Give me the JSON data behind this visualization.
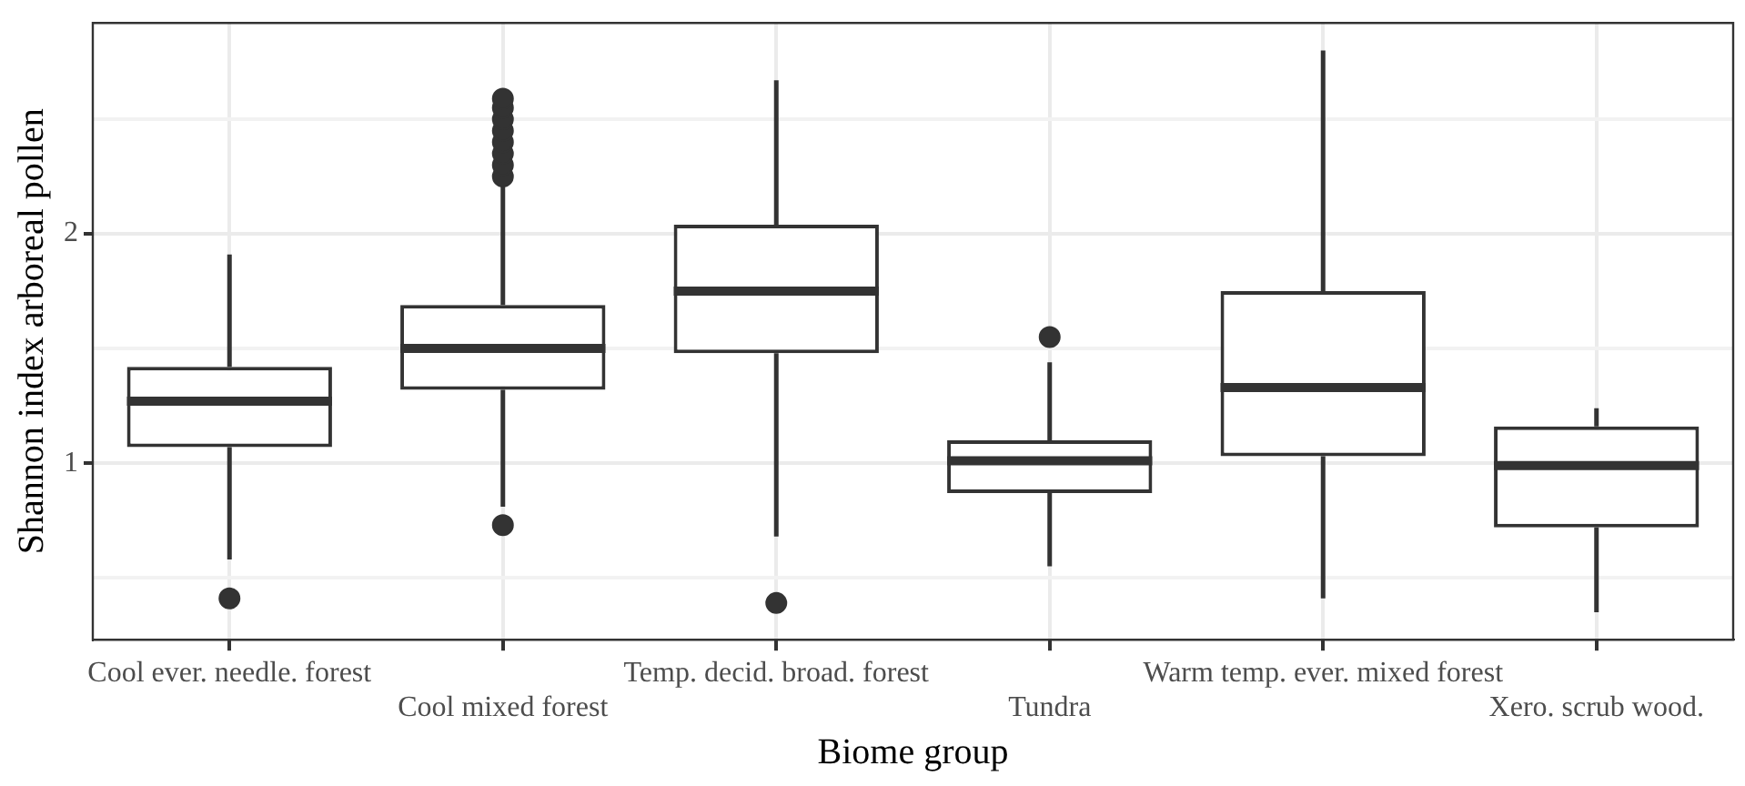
{
  "chart_data": {
    "type": "box",
    "xlabel": "Biome group",
    "ylabel": "Shannon index arboreal pollen",
    "color": "#333333",
    "grid": true,
    "categories": [
      "Cool ever. needle. forest",
      "Cool mixed forest",
      "Temp. decid. broad. forest",
      "Tundra",
      "Warm temp. ever. mixed forest",
      "Xero. scrub wood."
    ],
    "boxes": [
      {
        "low": 0.58,
        "q1": 1.07,
        "median": 1.27,
        "q3": 1.42,
        "high": 1.91,
        "outliers": [
          0.41
        ]
      },
      {
        "low": 0.81,
        "q1": 1.32,
        "median": 1.5,
        "q3": 1.69,
        "high": 2.22,
        "outliers": [
          0.73,
          2.25,
          2.3,
          2.35,
          2.4,
          2.45,
          2.5,
          2.55,
          2.59
        ]
      },
      {
        "low": 0.68,
        "q1": 1.48,
        "median": 1.75,
        "q3": 2.04,
        "high": 2.67,
        "outliers": [
          0.39
        ]
      },
      {
        "low": 0.55,
        "q1": 0.87,
        "median": 1.01,
        "q3": 1.1,
        "high": 1.44,
        "outliers": [
          1.55
        ]
      },
      {
        "low": 0.41,
        "q1": 1.03,
        "median": 1.33,
        "q3": 1.75,
        "high": 2.8
      },
      {
        "low": 0.35,
        "q1": 0.72,
        "median": 0.99,
        "q3": 1.16,
        "high": 1.24
      }
    ],
    "ylim": [
      0.23,
      2.92
    ],
    "yticks": [
      {
        "value": 0.5,
        "label": null
      },
      1,
      {
        "value": 1.5,
        "label": null
      },
      2,
      {
        "value": 2.5,
        "label": null
      }
    ]
  }
}
